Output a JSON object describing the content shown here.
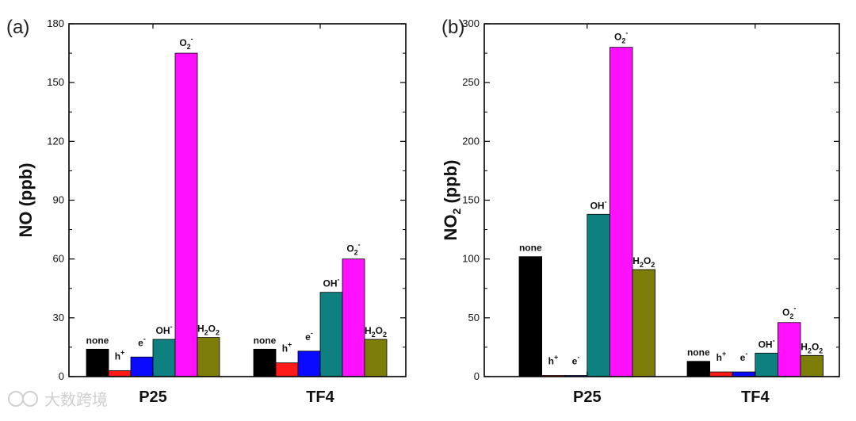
{
  "chart_data": [
    {
      "type": "bar",
      "panel_label": "(a)",
      "ylabel": "NO (ppb)",
      "ylim": [
        0,
        180
      ],
      "yticks": [
        0,
        30,
        60,
        90,
        120,
        150,
        180
      ],
      "categories": [
        "P25",
        "TF4"
      ],
      "series": [
        {
          "name": "none",
          "color": "#000000",
          "values": [
            14,
            14
          ]
        },
        {
          "name": "h+",
          "color": "#ff1a1a",
          "values": [
            3,
            7
          ]
        },
        {
          "name": "e-",
          "color": "#0a0aff",
          "values": [
            10,
            13
          ]
        },
        {
          "name": "OH-",
          "color": "#0e8080",
          "values": [
            19,
            43
          ]
        },
        {
          "name": "O2-",
          "color": "#ff10ff",
          "values": [
            165,
            60
          ]
        },
        {
          "name": "H2O2",
          "color": "#7d7d0a",
          "values": [
            20,
            19
          ]
        }
      ]
    },
    {
      "type": "bar",
      "panel_label": "(b)",
      "ylabel": "NO2 (ppb)",
      "ylim": [
        0,
        300
      ],
      "yticks": [
        0,
        50,
        100,
        150,
        200,
        250,
        300
      ],
      "categories": [
        "P25",
        "TF4"
      ],
      "series": [
        {
          "name": "none",
          "color": "#000000",
          "values": [
            102,
            13
          ]
        },
        {
          "name": "h+",
          "color": "#ff1a1a",
          "values": [
            1,
            4
          ]
        },
        {
          "name": "e-",
          "color": "#0a0aff",
          "values": [
            1,
            4
          ]
        },
        {
          "name": "OH-",
          "color": "#0e8080",
          "values": [
            138,
            20
          ]
        },
        {
          "name": "O2-",
          "color": "#ff10ff",
          "values": [
            280,
            46
          ]
        },
        {
          "name": "H2O2",
          "color": "#7d7d0a",
          "values": [
            91,
            18
          ]
        }
      ]
    }
  ],
  "watermark": "大数跨境"
}
